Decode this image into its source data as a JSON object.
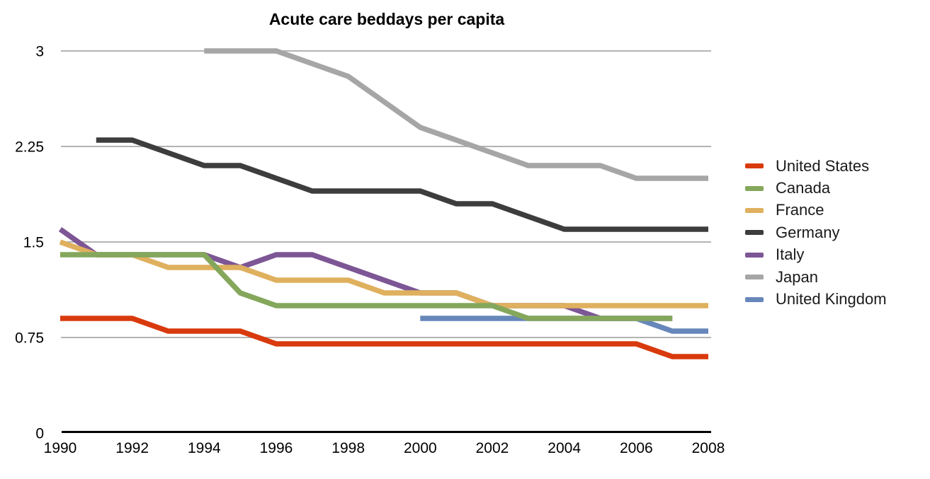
{
  "title": "Acute care beddays per capita",
  "colors": {
    "background": "#ffffff",
    "gridline": "#b3b3b3",
    "axis": "#000000",
    "tick_text": "#000000",
    "legend_text": "#1a1a1a"
  },
  "chart_data": {
    "type": "line",
    "title": "Acute care beddays per capita",
    "xlabel": "",
    "ylabel": "",
    "xlim": [
      1990,
      2008
    ],
    "ylim": [
      0,
      3
    ],
    "x_ticks": [
      1990,
      1992,
      1994,
      1996,
      1998,
      2000,
      2002,
      2004,
      2006,
      2008
    ],
    "y_ticks": [
      {
        "value": 0,
        "label": "0"
      },
      {
        "value": 0.75,
        "label": "0.75"
      },
      {
        "value": 1.5,
        "label": "1.5"
      },
      {
        "value": 2.25,
        "label": "2.25"
      },
      {
        "value": 3,
        "label": "3"
      }
    ],
    "grid": "horizontal-only",
    "legend_position": "right",
    "draw_order": [
      "Japan",
      "Germany",
      "Italy",
      "United Kingdom",
      "France",
      "Canada",
      "United States"
    ],
    "series": [
      {
        "name": "United States",
        "color": "#d93a0d",
        "years": [
          1990,
          1991,
          1992,
          1993,
          1994,
          1995,
          1996,
          1997,
          1998,
          1999,
          2000,
          2001,
          2002,
          2003,
          2004,
          2005,
          2006,
          2007,
          2008
        ],
        "values": [
          0.9,
          0.9,
          0.9,
          0.8,
          0.8,
          0.8,
          0.7,
          0.7,
          0.7,
          0.7,
          0.7,
          0.7,
          0.7,
          0.7,
          0.7,
          0.7,
          0.7,
          0.6,
          0.6
        ]
      },
      {
        "name": "Canada",
        "color": "#84a75c",
        "years": [
          1990,
          1991,
          1992,
          1993,
          1994,
          1995,
          1996,
          1997,
          1998,
          1999,
          2000,
          2001,
          2002,
          2003,
          2004,
          2005,
          2006,
          2007
        ],
        "values": [
          1.4,
          1.4,
          1.4,
          1.4,
          1.4,
          1.1,
          1.0,
          1.0,
          1.0,
          1.0,
          1.0,
          1.0,
          1.0,
          0.9,
          0.9,
          0.9,
          0.9,
          0.9
        ]
      },
      {
        "name": "France",
        "color": "#dfb05e",
        "years": [
          1990,
          1991,
          1992,
          1993,
          1994,
          1995,
          1996,
          1997,
          1998,
          1999,
          2000,
          2001,
          2002,
          2003,
          2004,
          2005,
          2006,
          2007,
          2008
        ],
        "values": [
          1.5,
          1.4,
          1.4,
          1.3,
          1.3,
          1.3,
          1.2,
          1.2,
          1.2,
          1.1,
          1.1,
          1.1,
          1.0,
          1.0,
          1.0,
          1.0,
          1.0,
          1.0,
          1.0
        ]
      },
      {
        "name": "Germany",
        "color": "#3d3d3d",
        "years": [
          1991,
          1992,
          1993,
          1994,
          1995,
          1996,
          1997,
          1998,
          1999,
          2000,
          2001,
          2002,
          2003,
          2004,
          2005,
          2006,
          2007,
          2008
        ],
        "values": [
          2.3,
          2.3,
          2.2,
          2.1,
          2.1,
          2.0,
          1.9,
          1.9,
          1.9,
          1.9,
          1.8,
          1.8,
          1.7,
          1.6,
          1.6,
          1.6,
          1.6,
          1.6
        ]
      },
      {
        "name": "Italy",
        "color": "#7d5695",
        "years": [
          1990,
          1991,
          1992,
          1993,
          1994,
          1995,
          1996,
          1997,
          1998,
          1999,
          2000,
          2001,
          2002,
          2003,
          2004,
          2005,
          2006,
          2007
        ],
        "values": [
          1.6,
          1.4,
          1.4,
          1.4,
          1.4,
          1.3,
          1.4,
          1.4,
          1.3,
          1.2,
          1.1,
          1.1,
          1.0,
          1.0,
          1.0,
          0.9,
          0.9,
          0.9
        ]
      },
      {
        "name": "Japan",
        "color": "#a6a6a6",
        "years": [
          1994,
          1995,
          1996,
          1997,
          1998,
          1999,
          2000,
          2001,
          2002,
          2003,
          2004,
          2005,
          2006,
          2007,
          2008
        ],
        "values": [
          3.0,
          3.0,
          3.0,
          2.9,
          2.8,
          2.6,
          2.4,
          2.3,
          2.2,
          2.1,
          2.1,
          2.1,
          2.0,
          2.0,
          2.0
        ]
      },
      {
        "name": "United Kingdom",
        "color": "#6787ba",
        "years": [
          2000,
          2001,
          2002,
          2003,
          2004,
          2005,
          2006,
          2007,
          2008
        ],
        "values": [
          0.9,
          0.9,
          0.9,
          0.9,
          0.9,
          0.9,
          0.9,
          0.8,
          0.8
        ]
      }
    ]
  }
}
